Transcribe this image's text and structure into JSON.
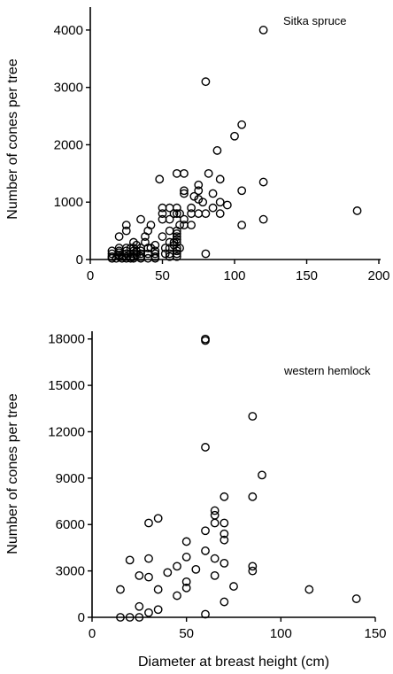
{
  "chart_data": [
    {
      "type": "scatter",
      "title": "",
      "annotation": "Sitka spruce",
      "xlabel": "",
      "ylabel": "Number of cones per tree",
      "xlim": [
        0,
        200
      ],
      "ylim": [
        0,
        4400
      ],
      "x_ticks": [
        0,
        50,
        100,
        150,
        200
      ],
      "y_ticks": [
        0,
        1000,
        2000,
        3000,
        4000
      ],
      "grid": false,
      "series": [
        {
          "x": [
            15,
            15,
            15,
            15,
            18,
            20,
            20,
            20,
            20,
            20,
            20,
            22,
            22,
            25,
            25,
            25,
            25,
            25,
            25,
            25,
            28,
            28,
            28,
            28,
            30,
            30,
            30,
            30,
            30,
            30,
            32,
            32,
            32,
            35,
            35,
            35,
            35,
            35,
            35,
            38,
            38,
            40,
            40,
            40,
            40,
            42,
            42,
            45,
            45,
            45,
            45,
            45,
            48,
            50,
            50,
            50,
            50,
            52,
            52,
            55,
            55,
            55,
            55,
            55,
            55,
            55,
            58,
            58,
            58,
            60,
            60,
            60,
            60,
            60,
            60,
            60,
            60,
            60,
            60,
            60,
            60,
            62,
            62,
            62,
            65,
            65,
            65,
            65,
            65,
            70,
            70,
            70,
            72,
            75,
            75,
            75,
            75,
            78,
            80,
            80,
            80,
            82,
            85,
            85,
            88,
            90,
            90,
            90,
            95,
            100,
            105,
            105,
            105,
            120,
            120,
            120,
            185
          ],
          "y": [
            20,
            50,
            100,
            150,
            20,
            50,
            80,
            120,
            150,
            200,
            400,
            20,
            50,
            20,
            50,
            100,
            150,
            200,
            500,
            600,
            20,
            50,
            100,
            200,
            20,
            50,
            100,
            150,
            200,
            300,
            80,
            150,
            250,
            20,
            50,
            100,
            150,
            200,
            700,
            300,
            400,
            20,
            100,
            200,
            500,
            200,
            600,
            20,
            50,
            100,
            150,
            250,
            1400,
            400,
            700,
            800,
            900,
            100,
            200,
            50,
            100,
            200,
            300,
            500,
            700,
            900,
            250,
            300,
            800,
            50,
            100,
            150,
            200,
            300,
            350,
            400,
            450,
            500,
            800,
            900,
            1500,
            200,
            600,
            800,
            600,
            700,
            1150,
            1200,
            1500,
            600,
            800,
            900,
            1100,
            800,
            1050,
            1200,
            1300,
            1000,
            100,
            800,
            3100,
            1500,
            900,
            1150,
            1900,
            800,
            1000,
            1400,
            950,
            2150,
            600,
            1200,
            2350,
            700,
            1350,
            4000,
            850
          ]
        }
      ]
    },
    {
      "type": "scatter",
      "title": "",
      "annotation": "western hemlock",
      "xlabel": "Diameter at breast height (cm)",
      "ylabel": "Number of cones per tree",
      "xlim": [
        0,
        150
      ],
      "ylim": [
        0,
        18500
      ],
      "x_ticks": [
        0,
        50,
        100,
        150
      ],
      "y_ticks": [
        0,
        3000,
        6000,
        9000,
        12000,
        15000,
        18000
      ],
      "grid": false,
      "series": [
        {
          "x": [
            15,
            15,
            20,
            20,
            25,
            25,
            25,
            30,
            30,
            30,
            30,
            35,
            35,
            35,
            40,
            45,
            45,
            50,
            50,
            50,
            50,
            55,
            60,
            60,
            60,
            60,
            60,
            60,
            65,
            65,
            65,
            65,
            65,
            70,
            70,
            70,
            70,
            70,
            70,
            75,
            85,
            85,
            85,
            85,
            90,
            115,
            140
          ],
          "y": [
            0,
            1800,
            0,
            3700,
            0,
            700,
            2700,
            300,
            2600,
            3800,
            6100,
            500,
            1800,
            6400,
            2900,
            1400,
            3300,
            1900,
            2300,
            3900,
            4900,
            3100,
            200,
            4300,
            5600,
            11000,
            17900,
            18000,
            2700,
            3800,
            6100,
            6600,
            6900,
            1000,
            3500,
            5000,
            5400,
            6100,
            7800,
            2000,
            3000,
            3300,
            7800,
            13000,
            9200,
            1800,
            1200
          ]
        }
      ]
    }
  ]
}
